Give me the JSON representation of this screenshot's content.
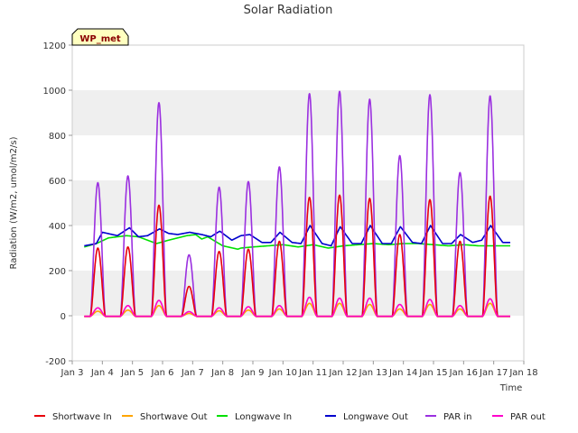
{
  "chart_data": {
    "type": "line",
    "title": "Solar Radiation",
    "xlabel": "Time",
    "ylabel": "Radiation (W/m2, umol/m2/s)",
    "badge": "WP_met",
    "xlim": [
      3,
      18
    ],
    "ylim": [
      -200,
      1200
    ],
    "x_ticks": [
      3,
      4,
      5,
      6,
      7,
      8,
      9,
      10,
      11,
      12,
      13,
      14,
      15,
      16,
      17,
      18
    ],
    "x_tick_labels": [
      "Jan 3",
      "Jan 4",
      "Jan 5",
      "Jan 6",
      "Jan 7",
      "Jan 8",
      "Jan 9",
      "Jan 10",
      "Jan 11",
      "Jan 12",
      "Jan 13",
      "Jan 14",
      "Jan 15",
      "Jan 16",
      "Jan 17",
      "Jan 18"
    ],
    "y_ticks": [
      -200,
      0,
      200,
      400,
      600,
      800,
      1000,
      1200
    ],
    "y_tick_labels": [
      "-200",
      "0",
      "200",
      "400",
      "600",
      "800",
      "1000",
      "1200"
    ],
    "grid": "horizontal bands",
    "legend_position": "bottom",
    "x_start": 3.4,
    "x_end": 17.55,
    "day_peaks": {
      "day": [
        3.85,
        4.85,
        5.88,
        6.88,
        7.88,
        8.85,
        9.88,
        10.88,
        11.88,
        12.88,
        13.88,
        14.88,
        15.88,
        16.88
      ],
      "PAR in": [
        590,
        620,
        945,
        270,
        570,
        595,
        660,
        985,
        995,
        960,
        710,
        980,
        635,
        975
      ],
      "Shortwave In": [
        300,
        305,
        490,
        130,
        285,
        295,
        330,
        525,
        535,
        520,
        360,
        515,
        330,
        530
      ],
      "PAR out": [
        35,
        45,
        68,
        18,
        35,
        40,
        45,
        82,
        78,
        78,
        50,
        72,
        45,
        75
      ],
      "Shortwave Out": [
        20,
        25,
        45,
        10,
        22,
        25,
        30,
        55,
        55,
        50,
        30,
        50,
        30,
        55
      ]
    },
    "series": [
      {
        "name": "Shortwave In",
        "color": "#e8000b"
      },
      {
        "name": "Shortwave Out",
        "color": "#ffa500"
      },
      {
        "name": "Longwave In",
        "color": "#00e000",
        "x": [
          3.4,
          3.8,
          4.2,
          4.8,
          5.2,
          5.8,
          6.2,
          6.8,
          7.1,
          7.3,
          7.5,
          8.0,
          8.5,
          8.6,
          9.0,
          9.5,
          10.0,
          10.5,
          11.0,
          11.5,
          12.0,
          12.5,
          13.0,
          13.5,
          14.0,
          14.5,
          15.0,
          15.5,
          16.0,
          16.5,
          17.0,
          17.55
        ],
        "y": [
          305,
          320,
          345,
          355,
          350,
          320,
          335,
          355,
          360,
          340,
          350,
          310,
          295,
          300,
          305,
          310,
          315,
          305,
          315,
          300,
          310,
          315,
          320,
          315,
          320,
          320,
          315,
          310,
          315,
          310,
          310,
          310
        ]
      },
      {
        "name": "Longwave Out",
        "color": "#0000cd",
        "x": [
          3.4,
          3.8,
          4.0,
          4.5,
          4.9,
          5.2,
          5.5,
          5.9,
          6.2,
          6.5,
          6.9,
          7.3,
          7.6,
          7.9,
          8.3,
          8.6,
          8.9,
          9.3,
          9.6,
          9.9,
          10.3,
          10.6,
          10.9,
          11.3,
          11.6,
          11.9,
          12.3,
          12.6,
          12.9,
          13.3,
          13.6,
          13.9,
          14.3,
          14.6,
          14.9,
          15.3,
          15.6,
          15.9,
          16.3,
          16.6,
          16.9,
          17.3,
          17.55
        ],
        "y": [
          310,
          320,
          370,
          355,
          390,
          350,
          355,
          385,
          365,
          360,
          370,
          360,
          350,
          375,
          335,
          355,
          360,
          325,
          325,
          370,
          325,
          320,
          400,
          320,
          310,
          395,
          320,
          320,
          400,
          320,
          320,
          395,
          325,
          320,
          400,
          320,
          320,
          360,
          325,
          335,
          400,
          325,
          325
        ]
      },
      {
        "name": "PAR in",
        "color": "#9b30e0"
      },
      {
        "name": "PAR out",
        "color": "#ff00cc"
      }
    ]
  }
}
